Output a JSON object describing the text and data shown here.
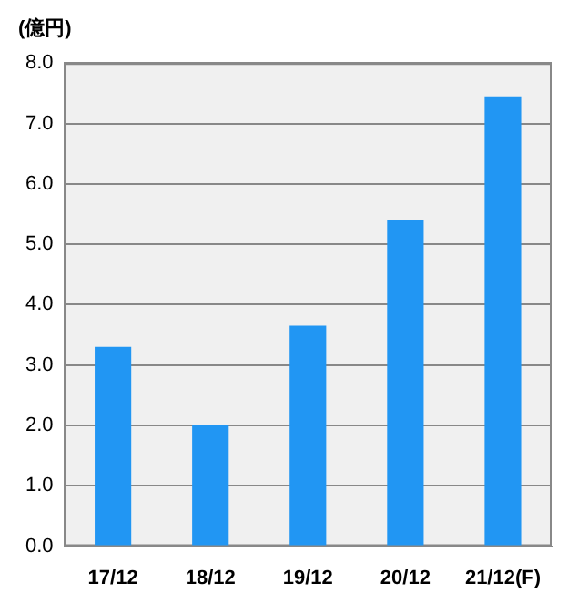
{
  "chart_data": {
    "type": "bar",
    "ylabel": "(億円)",
    "categories": [
      "17/12",
      "18/12",
      "19/12",
      "20/12",
      "21/12(F)"
    ],
    "values": [
      3.3,
      2.0,
      3.65,
      5.4,
      7.45
    ],
    "color": "#2196f3",
    "ylim": [
      0,
      8
    ],
    "yticks": [
      {
        "value": 0,
        "label": "0.0"
      },
      {
        "value": 1,
        "label": "1.0"
      },
      {
        "value": 2,
        "label": "2.0"
      },
      {
        "value": 3,
        "label": "3.0"
      },
      {
        "value": 4,
        "label": "4.0"
      },
      {
        "value": 5,
        "label": "5.0"
      },
      {
        "value": 6,
        "label": "6.0"
      },
      {
        "value": 7,
        "label": "7.0"
      },
      {
        "value": 8,
        "label": "8.0"
      }
    ],
    "grid": "y"
  }
}
